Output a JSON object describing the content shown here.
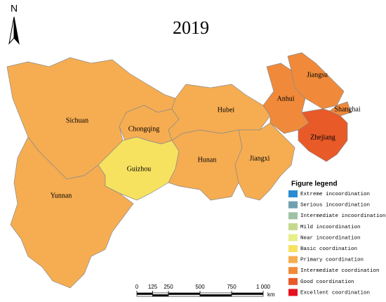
{
  "title": "2019",
  "north": "N",
  "regions": [
    {
      "name": "Sichuan",
      "color": "#f6ad51"
    },
    {
      "name": "Yunnan",
      "color": "#f6ad51"
    },
    {
      "name": "Chongqing",
      "color": "#f6ad51"
    },
    {
      "name": "Guizhou",
      "color": "#f7e260"
    },
    {
      "name": "Hubei",
      "color": "#f6ad51"
    },
    {
      "name": "Hunan",
      "color": "#f6ad51"
    },
    {
      "name": "Jiangxi",
      "color": "#f6ad51"
    },
    {
      "name": "Anhui",
      "color": "#f08a3a"
    },
    {
      "name": "Jiangsu",
      "color": "#f08a3a"
    },
    {
      "name": "Shanghai",
      "color": "#f08a3a"
    },
    {
      "name": "Zhejiang",
      "color": "#e85a28"
    }
  ],
  "legend": {
    "title": "Figure legend",
    "items": [
      {
        "label": "Extreme incoordination",
        "color": "#2b8cd2"
      },
      {
        "label": "Serious incoordination",
        "color": "#6fa0b0"
      },
      {
        "label": "Intermediate incoordination",
        "color": "#9fc2a6"
      },
      {
        "label": "Mild incoordination",
        "color": "#c5d98d"
      },
      {
        "label": "Near incoordination",
        "color": "#e8ee8a"
      },
      {
        "label": "Basic coordination",
        "color": "#f7e260"
      },
      {
        "label": "Primary coordination",
        "color": "#f6ad51"
      },
      {
        "label": "Intermediate coordination",
        "color": "#f08a3a"
      },
      {
        "label": "Good coordination",
        "color": "#e85a28"
      },
      {
        "label": "Excellent coordination",
        "color": "#e5121d"
      }
    ]
  },
  "scale_bar": {
    "ticks": [
      0,
      125,
      250,
      500,
      750,
      {
        "value": 1000,
        "label": "1 000"
      }
    ],
    "unit": "km"
  }
}
